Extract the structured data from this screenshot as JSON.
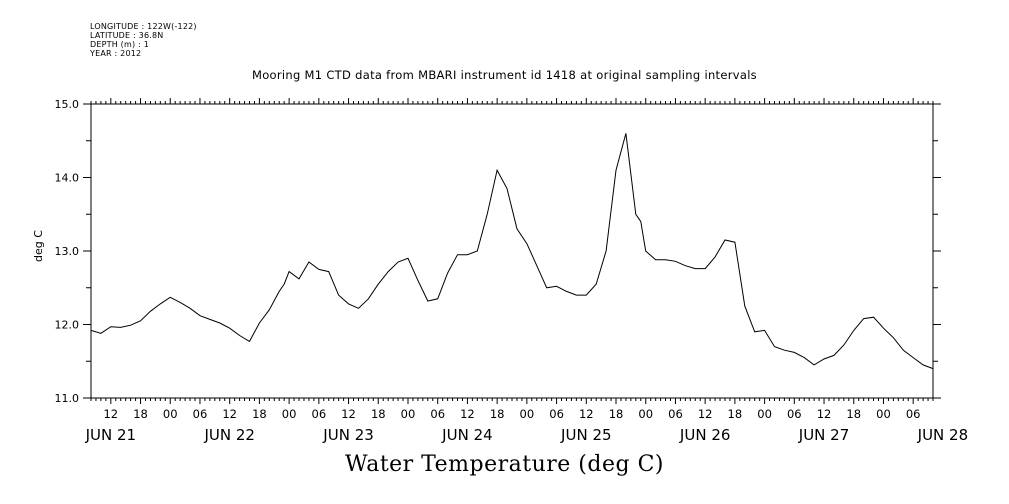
{
  "header": {
    "longitude": "LONGITUDE : 122W(-122)",
    "latitude": "LATITUDE : 36.8N",
    "depth": "DEPTH (m) : 1",
    "year": "YEAR : 2012"
  },
  "chart_data": {
    "type": "line",
    "title": "Mooring M1 CTD data from MBARI instrument id 1418 at original sampling intervals",
    "xlabel": "Water Temperature (deg C)",
    "ylabel": "deg C",
    "xlim": [
      "2012-06-21T08:00",
      "2012-06-28T10:00"
    ],
    "ylim": [
      11.0,
      15.0
    ],
    "yticks": [
      "11.0",
      "12.0",
      "13.0",
      "14.0",
      "15.0"
    ],
    "hour_tick_labels": [
      "12",
      "18",
      "00",
      "06",
      "12",
      "18",
      "00",
      "06",
      "12",
      "18",
      "00",
      "06",
      "12",
      "18",
      "00",
      "06",
      "12",
      "18",
      "00",
      "06",
      "12",
      "18",
      "00",
      "06",
      "12",
      "18",
      "00",
      "06"
    ],
    "day_labels": [
      "JUN 21",
      "JUN 22",
      "JUN 23",
      "JUN 24",
      "JUN 25",
      "JUN 26",
      "JUN 27",
      "JUN 28"
    ],
    "grid": false,
    "series": [
      {
        "x": [
          "2012-06-21T08:00",
          "2012-06-21T10:00",
          "2012-06-21T12:00",
          "2012-06-21T14:00",
          "2012-06-21T16:00",
          "2012-06-21T18:00",
          "2012-06-21T20:00",
          "2012-06-21T22:00",
          "2012-06-22T00:00",
          "2012-06-22T02:00",
          "2012-06-22T04:00",
          "2012-06-22T06:00",
          "2012-06-22T08:00",
          "2012-06-22T10:00",
          "2012-06-22T12:00",
          "2012-06-22T14:00",
          "2012-06-22T16:00",
          "2012-06-22T18:00",
          "2012-06-22T20:00",
          "2012-06-22T22:00",
          "2012-06-22T23:00",
          "2012-06-23T00:00",
          "2012-06-23T02:00",
          "2012-06-23T04:00",
          "2012-06-23T06:00",
          "2012-06-23T08:00",
          "2012-06-23T10:00",
          "2012-06-23T12:00",
          "2012-06-23T14:00",
          "2012-06-23T16:00",
          "2012-06-23T18:00",
          "2012-06-23T20:00",
          "2012-06-23T22:00",
          "2012-06-24T00:00",
          "2012-06-24T02:00",
          "2012-06-24T04:00",
          "2012-06-24T06:00",
          "2012-06-24T08:00",
          "2012-06-24T10:00",
          "2012-06-24T12:00",
          "2012-06-24T14:00",
          "2012-06-24T16:00",
          "2012-06-24T18:00",
          "2012-06-24T20:00",
          "2012-06-24T22:00",
          "2012-06-25T00:00",
          "2012-06-25T02:00",
          "2012-06-25T04:00",
          "2012-06-25T06:00",
          "2012-06-25T08:00",
          "2012-06-25T10:00",
          "2012-06-25T12:00",
          "2012-06-25T14:00",
          "2012-06-25T16:00",
          "2012-06-25T18:00",
          "2012-06-25T20:00",
          "2012-06-25T22:00",
          "2012-06-25T23:00",
          "2012-06-26T00:00",
          "2012-06-26T02:00",
          "2012-06-26T04:00",
          "2012-06-26T06:00",
          "2012-06-26T08:00",
          "2012-06-26T10:00",
          "2012-06-26T12:00",
          "2012-06-26T14:00",
          "2012-06-26T16:00",
          "2012-06-26T18:00",
          "2012-06-26T20:00",
          "2012-06-26T22:00",
          "2012-06-27T00:00",
          "2012-06-27T02:00",
          "2012-06-27T04:00",
          "2012-06-27T06:00",
          "2012-06-27T08:00",
          "2012-06-27T10:00",
          "2012-06-27T12:00",
          "2012-06-27T14:00",
          "2012-06-27T16:00",
          "2012-06-27T18:00",
          "2012-06-27T20:00",
          "2012-06-27T22:00",
          "2012-06-28T00:00",
          "2012-06-28T02:00",
          "2012-06-28T04:00",
          "2012-06-28T06:00",
          "2012-06-28T08:00",
          "2012-06-28T10:00"
        ],
        "values": [
          11.92,
          11.88,
          11.97,
          11.96,
          11.99,
          12.05,
          12.18,
          12.28,
          12.37,
          12.3,
          12.22,
          12.12,
          12.07,
          12.02,
          11.95,
          11.85,
          11.77,
          12.02,
          12.2,
          12.45,
          12.55,
          12.72,
          12.62,
          12.85,
          12.75,
          12.72,
          12.4,
          12.28,
          12.22,
          12.35,
          12.55,
          12.72,
          12.85,
          12.9,
          12.6,
          12.32,
          12.35,
          12.7,
          12.95,
          12.95,
          13.0,
          13.5,
          14.1,
          13.85,
          13.3,
          13.1,
          12.8,
          12.5,
          12.52,
          12.45,
          12.4,
          12.4,
          12.55,
          13.0,
          14.1,
          14.6,
          13.5,
          13.4,
          13.0,
          12.88,
          12.88,
          12.86,
          12.8,
          12.76,
          12.76,
          12.92,
          13.15,
          13.12,
          12.25,
          11.9,
          11.92,
          11.7,
          11.65,
          11.62,
          11.55,
          11.45,
          11.53,
          11.58,
          11.72,
          11.92,
          12.08,
          12.1,
          11.95,
          11.82,
          11.65,
          11.55,
          11.45,
          11.4
        ]
      }
    ]
  }
}
